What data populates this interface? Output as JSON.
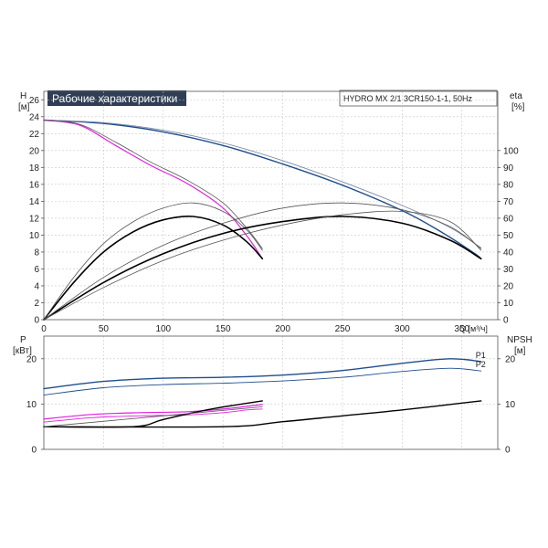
{
  "header": {
    "title": "Рабочие характеристики",
    "model": "HYDRO MX 2/1 3CR150-1-1, 50Hz",
    "title_bg": "#2f3e55"
  },
  "chart_data": [
    {
      "type": "line",
      "name": "performance",
      "left_axis_label": [
        "H",
        "[м]"
      ],
      "right_axis_label": [
        "eta",
        "[%]"
      ],
      "x_axis_label": "Q [м³/ч]",
      "xlim": [
        0,
        380
      ],
      "ylim": [
        0,
        27
      ],
      "eta_lim": [
        0,
        135
      ],
      "x_ticks": [
        0,
        50,
        100,
        150,
        200,
        250,
        300,
        350
      ],
      "y_ticks": [
        0,
        2,
        4,
        6,
        8,
        10,
        12,
        14,
        16,
        18,
        20,
        22,
        24,
        26
      ],
      "eta_ticks": [
        0,
        10,
        20,
        30,
        40,
        50,
        60,
        70,
        80,
        90,
        100
      ],
      "grid": true,
      "series": [
        {
          "kind": "head",
          "color": "#1f4e8c",
          "stroke": 1.4,
          "x": [
            0,
            50,
            100,
            150,
            200,
            250,
            300,
            330,
            360,
            366
          ],
          "y": [
            23.6,
            23.2,
            22.2,
            20.6,
            18.4,
            15.9,
            12.9,
            10.6,
            7.9,
            7.2
          ]
        },
        {
          "kind": "head",
          "color": "#7a8aa8",
          "stroke": 0.9,
          "x": [
            0,
            50,
            100,
            150,
            200,
            250,
            300,
            340,
            366
          ],
          "y": [
            23.6,
            23.3,
            22.4,
            20.9,
            18.8,
            16.3,
            13.5,
            10.9,
            8.5
          ]
        },
        {
          "kind": "head",
          "color": "#e020e0",
          "stroke": 1.2,
          "x": [
            0,
            30,
            60,
            90,
            120,
            150,
            170,
            183
          ],
          "y": [
            23.6,
            23.0,
            20.6,
            18.2,
            16.1,
            13.2,
            9.9,
            7.2
          ]
        },
        {
          "kind": "head",
          "color": "#555555",
          "stroke": 0.8,
          "x": [
            0,
            30,
            60,
            90,
            120,
            150,
            170,
            183
          ],
          "y": [
            23.6,
            23.1,
            21.0,
            18.6,
            16.5,
            13.8,
            10.8,
            8.4
          ]
        },
        {
          "kind": "eta",
          "color": "#000000",
          "stroke": 1.6,
          "x": [
            0,
            25,
            50,
            75,
            100,
            125,
            150,
            170,
            183
          ],
          "eta": [
            0,
            22,
            40,
            52,
            59,
            61,
            56,
            46,
            36
          ]
        },
        {
          "kind": "eta",
          "color": "#555555",
          "stroke": 0.8,
          "x": [
            0,
            25,
            50,
            75,
            100,
            125,
            150,
            170,
            183
          ],
          "eta": [
            0,
            25,
            45,
            58,
            66,
            69,
            64,
            53,
            41
          ]
        },
        {
          "kind": "eta",
          "color": "#000000",
          "stroke": 1.6,
          "x": [
            0,
            50,
            100,
            150,
            200,
            250,
            300,
            340,
            366
          ],
          "eta": [
            0,
            22,
            39,
            51,
            58,
            61,
            57,
            47,
            36
          ]
        },
        {
          "kind": "eta",
          "color": "#555555",
          "stroke": 0.8,
          "x": [
            0,
            50,
            100,
            150,
            200,
            250,
            300,
            340,
            366
          ],
          "eta": [
            0,
            25,
            44,
            57,
            66,
            69,
            65,
            55,
            42
          ]
        },
        {
          "kind": "eta",
          "color": "#555555",
          "stroke": 0.8,
          "x": [
            0,
            50,
            100,
            150,
            200,
            250,
            300,
            340,
            366
          ],
          "eta": [
            0,
            19,
            35,
            47,
            56,
            62,
            64,
            58,
            41
          ]
        }
      ]
    },
    {
      "type": "line",
      "name": "power",
      "left_axis_label": [
        "P",
        "[кВт]"
      ],
      "right_axis_label": [
        "NPSH",
        "[м]"
      ],
      "xlim": [
        0,
        380
      ],
      "ylim": [
        0,
        25
      ],
      "y_ticks": [
        0,
        10,
        20
      ],
      "npsh_ticks": [
        0,
        10,
        20
      ],
      "grid": true,
      "series": [
        {
          "name": "P1",
          "color": "#1f4e8c",
          "stroke": 1.4,
          "x": [
            0,
            50,
            100,
            150,
            200,
            250,
            300,
            340,
            366
          ],
          "y": [
            13.4,
            15.0,
            15.7,
            15.9,
            16.4,
            17.4,
            19.0,
            20.0,
            19.4
          ]
        },
        {
          "name": "P2",
          "color": "#1f4e8c",
          "stroke": 0.9,
          "x": [
            0,
            50,
            100,
            150,
            200,
            250,
            300,
            340,
            366
          ],
          "y": [
            12.0,
            13.6,
            14.3,
            14.6,
            15.1,
            15.9,
            17.2,
            17.9,
            17.3
          ]
        },
        {
          "name": "",
          "color": "#e020e0",
          "stroke": 1.2,
          "x": [
            0,
            40,
            80,
            120,
            150,
            170,
            183
          ],
          "y": [
            6.7,
            7.7,
            8.1,
            8.3,
            8.9,
            9.5,
            9.9
          ]
        },
        {
          "name": "",
          "color": "#e020e0",
          "stroke": 0.9,
          "x": [
            0,
            40,
            80,
            120,
            150,
            170,
            183
          ],
          "y": [
            6.0,
            7.0,
            7.4,
            7.6,
            8.1,
            8.7,
            8.9
          ]
        },
        {
          "name": "",
          "color": "#000000",
          "stroke": 1.4,
          "x": [
            0,
            75,
            100,
            140,
            183
          ],
          "y": [
            5.0,
            5.0,
            6.6,
            8.9,
            10.7
          ]
        },
        {
          "name": "",
          "color": "#000000",
          "stroke": 1.4,
          "x": [
            0,
            150,
            200,
            250,
            300,
            366
          ],
          "y": [
            5.0,
            5.0,
            6.1,
            7.4,
            8.7,
            10.7
          ]
        },
        {
          "name": "",
          "color": "#555555",
          "stroke": 0.8,
          "x": [
            0,
            183
          ],
          "y": [
            5.0,
            9.4
          ]
        }
      ]
    }
  ]
}
